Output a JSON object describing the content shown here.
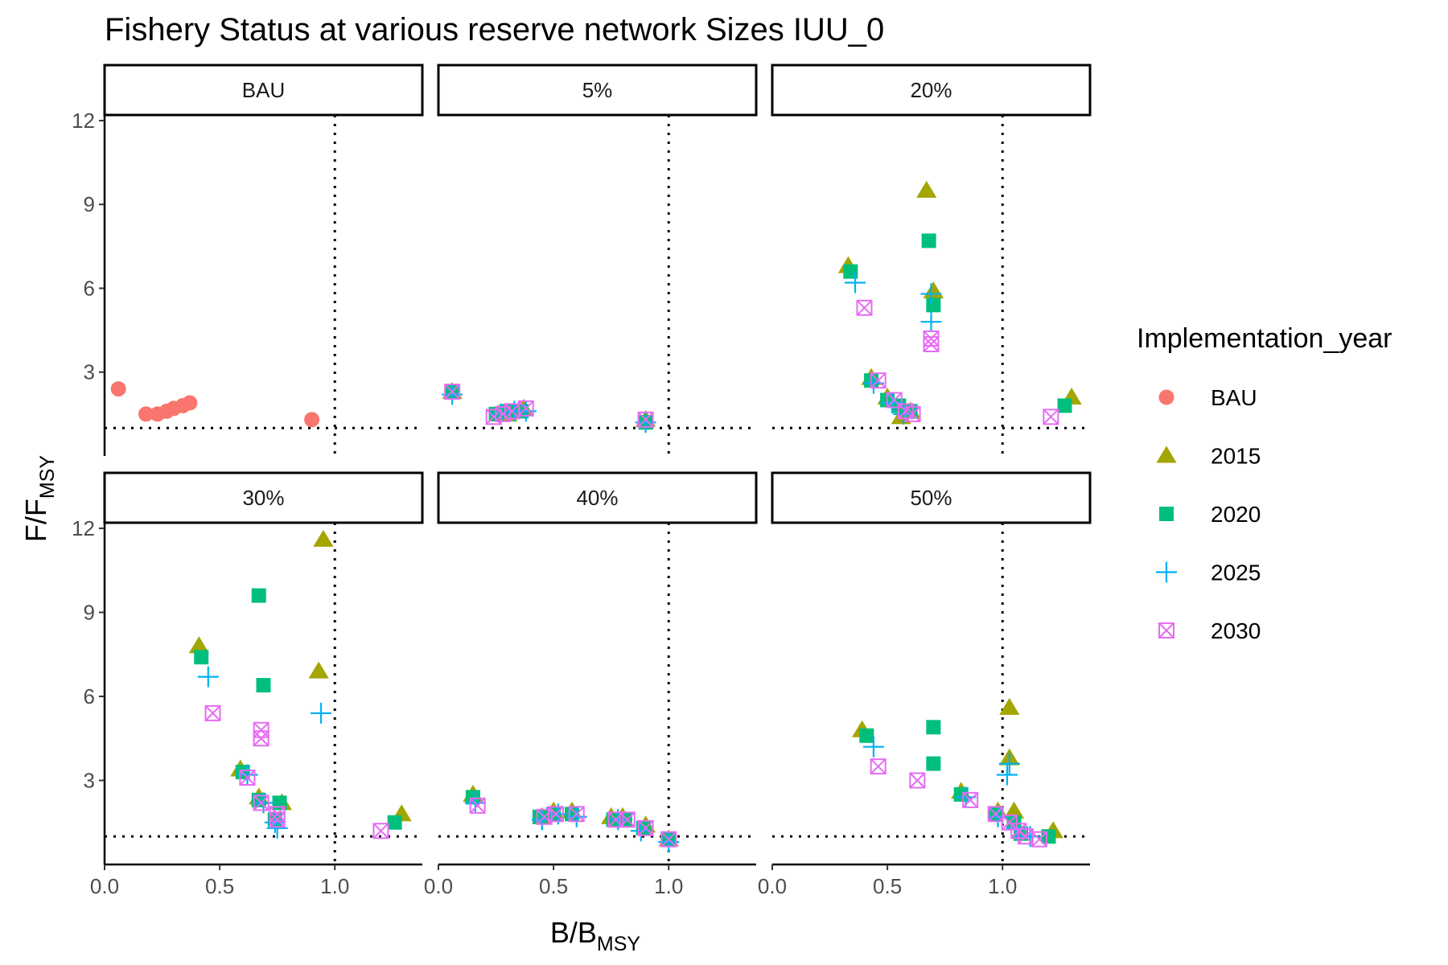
{
  "chart_data": {
    "type": "scatter",
    "title": "Fishery Status at various reserve network Sizes IUU_0",
    "xlabel": {
      "main": "B/B",
      "sub": "MSY"
    },
    "ylabel": {
      "main": "F/F",
      "sub": "MSY"
    },
    "xlim": [
      0,
      1.38
    ],
    "ylim": [
      0,
      12.2
    ],
    "x_ticks": [
      "0.0",
      "0.5",
      "1.0"
    ],
    "x_tick_values": [
      0,
      0.5,
      1.0
    ],
    "y_ticks": [
      "3",
      "6",
      "9",
      "12"
    ],
    "y_tick_values": [
      3,
      6,
      9,
      12
    ],
    "reference_lines": {
      "x": 1.0,
      "y": 1.0,
      "style": "dotted"
    },
    "grid": false,
    "legend": {
      "title": "Implementation_year",
      "position": "right",
      "entries": [
        {
          "label": "BAU",
          "color": "#F8766D",
          "shape": "circle"
        },
        {
          "label": "2015",
          "color": "#A3A500",
          "shape": "triangle"
        },
        {
          "label": "2020",
          "color": "#00BF7D",
          "shape": "square"
        },
        {
          "label": "2025",
          "color": "#00B0F6",
          "shape": "plus"
        },
        {
          "label": "2030",
          "color": "#E76BF3",
          "shape": "boxx"
        }
      ]
    },
    "panels": [
      {
        "label": "BAU",
        "series": [
          {
            "name": "BAU",
            "points": [
              [
                0.06,
                2.4
              ],
              [
                0.18,
                1.5
              ],
              [
                0.23,
                1.5
              ],
              [
                0.27,
                1.6
              ],
              [
                0.3,
                1.7
              ],
              [
                0.34,
                1.8
              ],
              [
                0.37,
                1.9
              ],
              [
                0.9,
                1.3
              ]
            ]
          }
        ]
      },
      {
        "label": "5%",
        "series": [
          {
            "name": "2015",
            "points": [
              [
                0.06,
                2.3
              ],
              [
                0.26,
                1.5
              ],
              [
                0.3,
                1.5
              ],
              [
                0.37,
                1.7
              ],
              [
                0.9,
                1.3
              ]
            ]
          },
          {
            "name": "2020",
            "points": [
              [
                0.06,
                2.3
              ],
              [
                0.25,
                1.5
              ],
              [
                0.3,
                1.6
              ],
              [
                0.36,
                1.6
              ],
              [
                0.9,
                1.2
              ]
            ]
          },
          {
            "name": "2025",
            "points": [
              [
                0.06,
                2.2
              ],
              [
                0.27,
                1.5
              ],
              [
                0.33,
                1.6
              ],
              [
                0.38,
                1.6
              ],
              [
                0.9,
                1.2
              ]
            ]
          },
          {
            "name": "2030",
            "points": [
              [
                0.06,
                2.3
              ],
              [
                0.24,
                1.4
              ],
              [
                0.28,
                1.5
              ],
              [
                0.32,
                1.6
              ],
              [
                0.38,
                1.7
              ],
              [
                0.9,
                1.3
              ]
            ]
          }
        ]
      },
      {
        "label": "20%",
        "series": [
          {
            "name": "2015",
            "points": [
              [
                0.33,
                6.8
              ],
              [
                0.67,
                9.5
              ],
              [
                0.7,
                5.9
              ],
              [
                0.43,
                2.8
              ],
              [
                0.5,
                2.1
              ],
              [
                0.56,
                1.4
              ],
              [
                0.6,
                1.6
              ],
              [
                1.3,
                2.1
              ]
            ]
          },
          {
            "name": "2020",
            "points": [
              [
                0.34,
                6.6
              ],
              [
                0.68,
                7.7
              ],
              [
                0.7,
                5.4
              ],
              [
                0.43,
                2.7
              ],
              [
                0.5,
                2.0
              ],
              [
                0.55,
                1.8
              ],
              [
                0.6,
                1.6
              ],
              [
                1.27,
                1.8
              ]
            ]
          },
          {
            "name": "2025",
            "points": [
              [
                0.36,
                6.2
              ],
              [
                0.69,
                5.8
              ],
              [
                0.69,
                4.8
              ],
              [
                0.44,
                2.6
              ],
              [
                0.52,
                1.9
              ],
              [
                0.57,
                1.5
              ]
            ]
          },
          {
            "name": "2030",
            "points": [
              [
                0.4,
                5.3
              ],
              [
                0.69,
                4.2
              ],
              [
                0.69,
                4.0
              ],
              [
                0.46,
                2.7
              ],
              [
                0.53,
                2.0
              ],
              [
                0.58,
                1.6
              ],
              [
                0.61,
                1.5
              ],
              [
                1.21,
                1.4
              ]
            ]
          }
        ]
      },
      {
        "label": "30%",
        "series": [
          {
            "name": "2015",
            "points": [
              [
                0.95,
                11.6
              ],
              [
                0.41,
                7.8
              ],
              [
                0.93,
                6.9
              ],
              [
                0.59,
                3.4
              ],
              [
                0.67,
                2.4
              ],
              [
                0.77,
                2.2
              ],
              [
                1.29,
                1.8
              ]
            ]
          },
          {
            "name": "2020",
            "points": [
              [
                0.67,
                9.6
              ],
              [
                0.42,
                7.4
              ],
              [
                0.69,
                6.4
              ],
              [
                0.6,
                3.3
              ],
              [
                0.67,
                2.3
              ],
              [
                0.76,
                2.2
              ],
              [
                0.74,
                1.6
              ],
              [
                1.26,
                1.5
              ]
            ]
          },
          {
            "name": "2025",
            "points": [
              [
                0.45,
                6.7
              ],
              [
                0.94,
                5.4
              ],
              [
                0.62,
                3.2
              ],
              [
                0.69,
                2.2
              ],
              [
                0.74,
                1.5
              ],
              [
                0.75,
                1.3
              ]
            ]
          },
          {
            "name": "2030",
            "points": [
              [
                0.47,
                5.4
              ],
              [
                0.68,
                4.8
              ],
              [
                0.68,
                4.5
              ],
              [
                0.62,
                3.1
              ],
              [
                0.68,
                2.2
              ],
              [
                0.75,
                1.8
              ],
              [
                0.75,
                1.6
              ],
              [
                1.2,
                1.2
              ]
            ]
          }
        ]
      },
      {
        "label": "40%",
        "series": [
          {
            "name": "2015",
            "points": [
              [
                0.15,
                2.5
              ],
              [
                0.45,
                1.7
              ],
              [
                0.5,
                1.9
              ],
              [
                0.58,
                1.9
              ],
              [
                0.75,
                1.7
              ],
              [
                0.8,
                1.7
              ],
              [
                0.9,
                1.4
              ],
              [
                1.0,
                0.9
              ]
            ]
          },
          {
            "name": "2020",
            "points": [
              [
                0.15,
                2.4
              ],
              [
                0.44,
                1.7
              ],
              [
                0.5,
                1.8
              ],
              [
                0.58,
                1.8
              ],
              [
                0.76,
                1.6
              ],
              [
                0.81,
                1.6
              ],
              [
                0.89,
                1.3
              ],
              [
                1.0,
                0.9
              ]
            ]
          },
          {
            "name": "2025",
            "points": [
              [
                0.16,
                2.2
              ],
              [
                0.45,
                1.6
              ],
              [
                0.52,
                1.8
              ],
              [
                0.6,
                1.7
              ],
              [
                0.78,
                1.6
              ],
              [
                0.88,
                1.2
              ],
              [
                1.0,
                0.8
              ]
            ]
          },
          {
            "name": "2030",
            "points": [
              [
                0.17,
                2.1
              ],
              [
                0.46,
                1.7
              ],
              [
                0.51,
                1.8
              ],
              [
                0.6,
                1.8
              ],
              [
                0.77,
                1.6
              ],
              [
                0.82,
                1.6
              ],
              [
                0.9,
                1.3
              ],
              [
                1.0,
                0.9
              ]
            ]
          }
        ]
      },
      {
        "label": "50%",
        "series": [
          {
            "name": "2015",
            "points": [
              [
                0.39,
                4.8
              ],
              [
                1.03,
                5.6
              ],
              [
                1.03,
                3.8
              ],
              [
                0.82,
                2.6
              ],
              [
                1.05,
                1.9
              ],
              [
                1.22,
                1.2
              ],
              [
                0.98,
                1.9
              ]
            ]
          },
          {
            "name": "2020",
            "points": [
              [
                0.41,
                4.6
              ],
              [
                0.7,
                4.9
              ],
              [
                0.7,
                3.6
              ],
              [
                0.82,
                2.5
              ],
              [
                0.97,
                1.8
              ],
              [
                1.05,
                1.5
              ],
              [
                1.08,
                1.1
              ],
              [
                1.2,
                1.0
              ]
            ]
          },
          {
            "name": "2025",
            "points": [
              [
                0.44,
                4.2
              ],
              [
                1.03,
                3.6
              ],
              [
                1.02,
                3.2
              ],
              [
                0.84,
                2.4
              ],
              [
                0.98,
                1.7
              ],
              [
                1.06,
                1.3
              ],
              [
                1.12,
                1.0
              ]
            ]
          },
          {
            "name": "2030",
            "points": [
              [
                0.46,
                3.5
              ],
              [
                0.63,
                3.0
              ],
              [
                0.86,
                2.3
              ],
              [
                0.97,
                1.8
              ],
              [
                1.03,
                1.5
              ],
              [
                1.07,
                1.2
              ],
              [
                1.1,
                1.0
              ],
              [
                1.16,
                0.9
              ]
            ]
          }
        ]
      }
    ]
  }
}
